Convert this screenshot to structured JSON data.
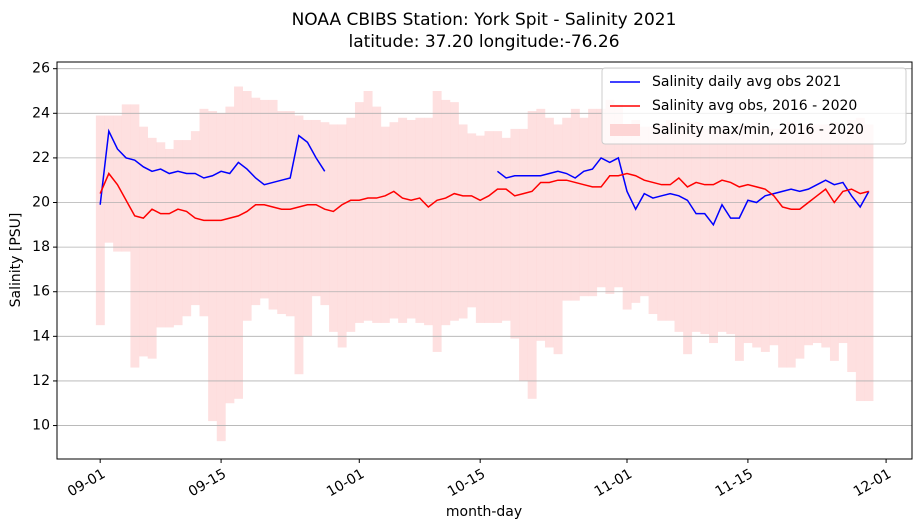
{
  "chart_data": {
    "type": "line",
    "title": "NOAA CBIBS Station: York Spit - Salinity 2021",
    "subtitle": "latitude: 37.20 longitude:-76.26",
    "x_label": "month-day",
    "y_label": "Salinity [PSU]",
    "xlim": [
      "08-27",
      "12-04"
    ],
    "xticks": [
      "09-01",
      "09-15",
      "10-01",
      "10-15",
      "11-01",
      "11-15",
      "12-01"
    ],
    "ylim": [
      8.5,
      26.3
    ],
    "yticks": [
      10,
      12,
      14,
      16,
      18,
      20,
      22,
      24,
      26
    ],
    "grid": true,
    "legend": "upper right",
    "x": [
      "09-01",
      "09-02",
      "09-03",
      "09-04",
      "09-05",
      "09-06",
      "09-07",
      "09-08",
      "09-09",
      "09-10",
      "09-11",
      "09-12",
      "09-13",
      "09-14",
      "09-15",
      "09-16",
      "09-17",
      "09-18",
      "09-19",
      "09-20",
      "09-21",
      "09-22",
      "09-23",
      "09-24",
      "09-25",
      "09-26",
      "09-27",
      "09-28",
      "09-29",
      "09-30",
      "10-01",
      "10-02",
      "10-03",
      "10-04",
      "10-05",
      "10-06",
      "10-07",
      "10-08",
      "10-09",
      "10-10",
      "10-11",
      "10-12",
      "10-13",
      "10-14",
      "10-15",
      "10-16",
      "10-17",
      "10-18",
      "10-19",
      "10-20",
      "10-21",
      "10-22",
      "10-23",
      "10-24",
      "10-25",
      "10-26",
      "10-27",
      "10-28",
      "10-29",
      "10-30",
      "10-31",
      "11-01",
      "11-02",
      "11-03",
      "11-04",
      "11-05",
      "11-06",
      "11-07",
      "11-08",
      "11-09",
      "11-10",
      "11-11",
      "11-12",
      "11-13",
      "11-14",
      "11-15",
      "11-16",
      "11-17",
      "11-18",
      "11-19",
      "11-20",
      "11-21",
      "11-22",
      "11-23",
      "11-24",
      "11-25",
      "11-26",
      "11-27",
      "11-28",
      "11-29"
    ],
    "series": [
      {
        "name": "Salinity daily avg obs 2021",
        "color": "#0000ff",
        "values": [
          19.9,
          23.2,
          22.4,
          22.0,
          21.9,
          21.6,
          21.4,
          21.5,
          21.3,
          21.4,
          21.3,
          21.3,
          21.1,
          21.2,
          21.4,
          21.3,
          21.8,
          21.5,
          21.1,
          20.8,
          20.9,
          21.0,
          21.1,
          23.0,
          22.7,
          22.0,
          21.4,
          null,
          null,
          null,
          null,
          null,
          null,
          null,
          null,
          null,
          null,
          null,
          null,
          null,
          null,
          null,
          null,
          null,
          null,
          null,
          21.4,
          21.1,
          21.2,
          21.2,
          21.2,
          21.2,
          21.3,
          21.4,
          21.3,
          21.1,
          21.4,
          21.5,
          22.0,
          21.8,
          22.0,
          20.5,
          19.7,
          20.4,
          20.2,
          20.3,
          20.4,
          20.3,
          20.1,
          19.5,
          19.5,
          19.0,
          19.9,
          19.3,
          19.3,
          20.1,
          20.0,
          20.3,
          20.4,
          20.5,
          20.6,
          20.5,
          20.6,
          20.8,
          21.0,
          20.8,
          20.9,
          20.3,
          19.8,
          20.5
        ]
      },
      {
        "name": "Salinity avg obs, 2016 - 2020",
        "color": "#ff0000",
        "values": [
          20.4,
          21.3,
          20.8,
          20.1,
          19.4,
          19.3,
          19.7,
          19.5,
          19.5,
          19.7,
          19.6,
          19.3,
          19.2,
          19.2,
          19.2,
          19.3,
          19.4,
          19.6,
          19.9,
          19.9,
          19.8,
          19.7,
          19.7,
          19.8,
          19.9,
          19.9,
          19.7,
          19.6,
          19.9,
          20.1,
          20.1,
          20.2,
          20.2,
          20.3,
          20.5,
          20.2,
          20.1,
          20.2,
          19.8,
          20.1,
          20.2,
          20.4,
          20.3,
          20.3,
          20.1,
          20.3,
          20.6,
          20.6,
          20.3,
          20.4,
          20.5,
          20.9,
          20.9,
          21.0,
          21.0,
          20.9,
          20.8,
          20.7,
          20.7,
          21.2,
          21.2,
          21.3,
          21.2,
          21.0,
          20.9,
          20.8,
          20.8,
          21.1,
          20.7,
          20.9,
          20.8,
          20.8,
          21.0,
          20.9,
          20.7,
          20.8,
          20.7,
          20.6,
          20.3,
          19.8,
          19.7,
          19.7,
          20.0,
          20.3,
          20.6,
          20.0,
          20.5,
          20.6,
          20.4,
          20.5
        ]
      },
      {
        "name": "Salinity max/min, 2016 - 2020",
        "color": "#fdd5d5",
        "type": "band",
        "high": [
          23.9,
          23.9,
          23.9,
          24.4,
          24.4,
          23.4,
          22.9,
          22.7,
          22.4,
          22.8,
          22.8,
          23.2,
          24.2,
          24.1,
          24.0,
          24.3,
          25.2,
          25.0,
          24.7,
          24.6,
          24.6,
          24.1,
          24.1,
          23.9,
          23.7,
          23.7,
          23.6,
          23.5,
          23.5,
          23.8,
          24.5,
          25.0,
          24.3,
          23.4,
          23.6,
          23.8,
          23.7,
          23.8,
          23.8,
          25.0,
          24.6,
          24.5,
          23.5,
          23.1,
          23.0,
          23.2,
          23.2,
          22.9,
          23.3,
          23.3,
          24.1,
          24.2,
          23.8,
          23.5,
          23.8,
          24.2,
          23.8,
          24.2,
          24.2,
          24.6,
          24.4,
          23.5,
          23.7,
          23.4,
          23.4,
          23.5,
          23.7,
          23.6,
          23.6,
          23.6,
          23.3,
          23.3,
          23.4,
          23.2,
          23.5,
          23.5,
          23.6,
          23.3,
          23.3,
          23.3,
          23.6,
          23.5,
          23.5,
          23.5,
          23.5,
          23.6,
          23.3,
          23.7,
          23.8,
          23.5
        ],
        "low": [
          14.5,
          18.2,
          17.8,
          17.8,
          12.6,
          13.1,
          13.0,
          14.4,
          14.4,
          14.5,
          14.9,
          15.4,
          14.9,
          10.2,
          9.3,
          11.0,
          11.2,
          14.7,
          15.4,
          15.7,
          15.2,
          15.0,
          14.9,
          12.3,
          14.0,
          15.8,
          15.4,
          14.2,
          13.5,
          14.2,
          14.6,
          14.7,
          14.6,
          14.6,
          14.8,
          14.6,
          14.8,
          14.6,
          14.5,
          13.3,
          14.5,
          14.7,
          14.8,
          15.3,
          14.6,
          14.6,
          14.6,
          14.7,
          13.9,
          12.0,
          11.2,
          13.8,
          13.5,
          13.2,
          15.6,
          15.6,
          15.8,
          15.8,
          16.2,
          15.9,
          16.2,
          15.2,
          15.5,
          15.8,
          15.0,
          14.7,
          14.7,
          14.2,
          13.2,
          14.2,
          14.1,
          13.7,
          14.2,
          14.1,
          12.9,
          13.7,
          13.5,
          13.3,
          13.6,
          12.6,
          12.6,
          13.0,
          13.6,
          13.7,
          13.5,
          12.9,
          13.7,
          12.4,
          11.1,
          11.1
        ]
      }
    ]
  }
}
